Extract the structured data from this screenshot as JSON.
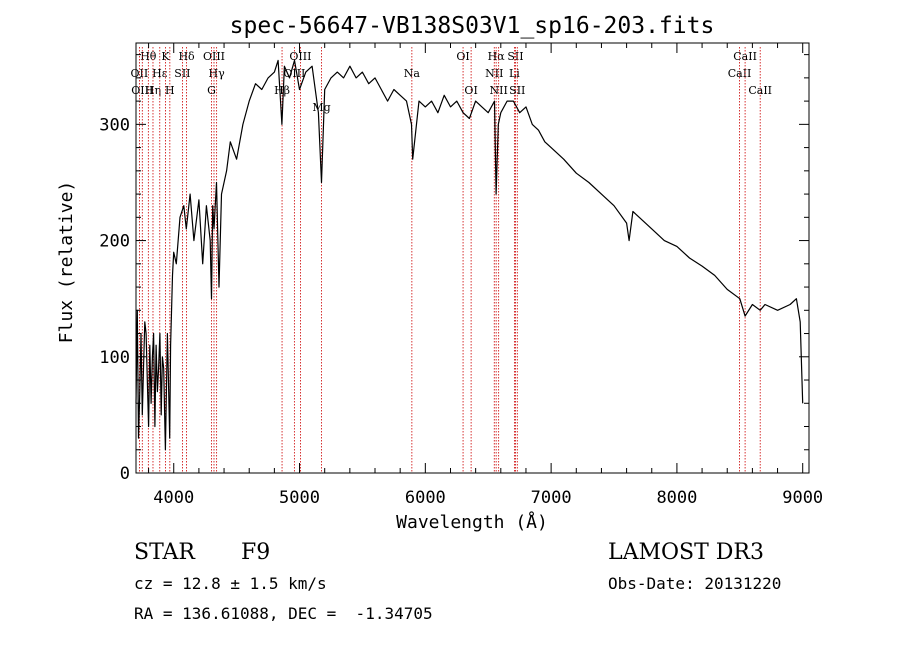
{
  "chart_data": {
    "type": "line",
    "title": "spec-56647-VB138S03V1_sp16-203.fits",
    "xlabel": "Wavelength (Å)",
    "ylabel": "Flux (relative)",
    "xlim": [
      3700,
      9050
    ],
    "ylim": [
      0,
      370
    ],
    "xticks": [
      4000,
      5000,
      6000,
      7000,
      8000,
      9000
    ],
    "yticks": [
      0,
      100,
      200,
      300
    ],
    "xtick_labels": [
      "4000",
      "5000",
      "6000",
      "7000",
      "8000",
      "9000"
    ],
    "ytick_labels": [
      "0",
      "100",
      "200",
      "300"
    ],
    "series": [
      {
        "name": "flux",
        "x": [
          3700,
          3710,
          3720,
          3730,
          3740,
          3750,
          3760,
          3770,
          3780,
          3790,
          3800,
          3810,
          3820,
          3830,
          3840,
          3850,
          3860,
          3870,
          3880,
          3890,
          3900,
          3910,
          3920,
          3930,
          3934,
          3940,
          3950,
          3960,
          3968,
          3975,
          3990,
          4000,
          4020,
          4050,
          4080,
          4100,
          4130,
          4160,
          4200,
          4230,
          4260,
          4290,
          4300,
          4310,
          4320,
          4340,
          4360,
          4380,
          4420,
          4450,
          4500,
          4550,
          4600,
          4650,
          4700,
          4750,
          4800,
          4830,
          4860,
          4880,
          4920,
          4960,
          5000,
          5050,
          5100,
          5150,
          5175,
          5200,
          5250,
          5300,
          5350,
          5400,
          5450,
          5500,
          5550,
          5600,
          5650,
          5700,
          5750,
          5800,
          5850,
          5890,
          5900,
          5950,
          6000,
          6050,
          6100,
          6150,
          6200,
          6250,
          6300,
          6350,
          6400,
          6450,
          6500,
          6550,
          6563,
          6580,
          6600,
          6650,
          6700,
          6750,
          6800,
          6850,
          6900,
          6950,
          7000,
          7100,
          7200,
          7300,
          7400,
          7500,
          7600,
          7620,
          7650,
          7700,
          7800,
          7900,
          8000,
          8100,
          8200,
          8300,
          8400,
          8500,
          8542,
          8600,
          8662,
          8700,
          8800,
          8900,
          8950,
          8980,
          9000
        ],
        "y": [
          60,
          140,
          30,
          70,
          120,
          50,
          90,
          130,
          120,
          80,
          40,
          110,
          60,
          100,
          120,
          40,
          110,
          70,
          90,
          120,
          50,
          100,
          90,
          40,
          20,
          60,
          120,
          70,
          30,
          110,
          170,
          190,
          180,
          220,
          230,
          210,
          240,
          200,
          235,
          180,
          230,
          200,
          150,
          230,
          210,
          250,
          160,
          240,
          260,
          285,
          270,
          300,
          320,
          335,
          330,
          340,
          345,
          355,
          300,
          350,
          340,
          355,
          330,
          345,
          350,
          310,
          250,
          330,
          340,
          345,
          340,
          350,
          340,
          345,
          335,
          340,
          330,
          320,
          330,
          325,
          320,
          300,
          270,
          320,
          315,
          320,
          310,
          325,
          315,
          320,
          310,
          305,
          320,
          315,
          310,
          320,
          240,
          300,
          310,
          320,
          320,
          310,
          315,
          300,
          295,
          285,
          280,
          270,
          258,
          250,
          240,
          230,
          215,
          200,
          225,
          220,
          210,
          200,
          195,
          185,
          178,
          170,
          158,
          150,
          135,
          145,
          140,
          145,
          140,
          145,
          150,
          130,
          60
        ]
      }
    ],
    "line_markers": [
      {
        "name": "Hθ",
        "x": 3798,
        "row": 0
      },
      {
        "name": "OII",
        "x": 3727,
        "row": 1
      },
      {
        "name": "OIII",
        "x": 3750,
        "row": 2
      },
      {
        "name": "Hη",
        "x": 3835,
        "row": 2
      },
      {
        "name": "Hε",
        "x": 3889,
        "row": 1
      },
      {
        "name": "K",
        "x": 3934,
        "row": 0
      },
      {
        "name": "H",
        "x": 3969,
        "row": 2
      },
      {
        "name": "SII",
        "x": 4069,
        "row": 1
      },
      {
        "name": "Hδ",
        "x": 4102,
        "row": 0
      },
      {
        "name": "OIII",
        "x": 4320,
        "row": 0
      },
      {
        "name": "Hγ",
        "x": 4341,
        "row": 1
      },
      {
        "name": "G",
        "x": 4300,
        "row": 2
      },
      {
        "name": "Hβ",
        "x": 4861,
        "row": 2
      },
      {
        "name": "OIII",
        "x": 4959,
        "row": 1
      },
      {
        "name": "OIII",
        "x": 5007,
        "row": 0
      },
      {
        "name": "Mg",
        "x": 5175,
        "row": 3
      },
      {
        "name": "Na",
        "x": 5893,
        "row": 1
      },
      {
        "name": "OI",
        "x": 6300,
        "row": 0
      },
      {
        "name": "OI",
        "x": 6364,
        "row": 2
      },
      {
        "name": "NII",
        "x": 6548,
        "row": 1
      },
      {
        "name": "Hα",
        "x": 6563,
        "row": 0
      },
      {
        "name": "NII",
        "x": 6583,
        "row": 2
      },
      {
        "name": "SII",
        "x": 6717,
        "row": 0
      },
      {
        "name": "Li",
        "x": 6708,
        "row": 1
      },
      {
        "name": "SII",
        "x": 6731,
        "row": 2
      },
      {
        "name": "CaII",
        "x": 8498,
        "row": 1
      },
      {
        "name": "CaII",
        "x": 8542,
        "row": 0
      },
      {
        "name": "CaII",
        "x": 8662,
        "row": 2
      }
    ]
  },
  "info": {
    "object_class": "STAR",
    "subclass": "F9",
    "survey": "LAMOST DR3",
    "cz_line": "cz = 12.8 ± 1.5 km/s",
    "obs_date": "Obs-Date: 20131220",
    "coords": "RA = 136.61088, DEC =  -1.34705"
  },
  "colors": {
    "marker_line": "#cc0000",
    "spectrum": "#000000"
  }
}
